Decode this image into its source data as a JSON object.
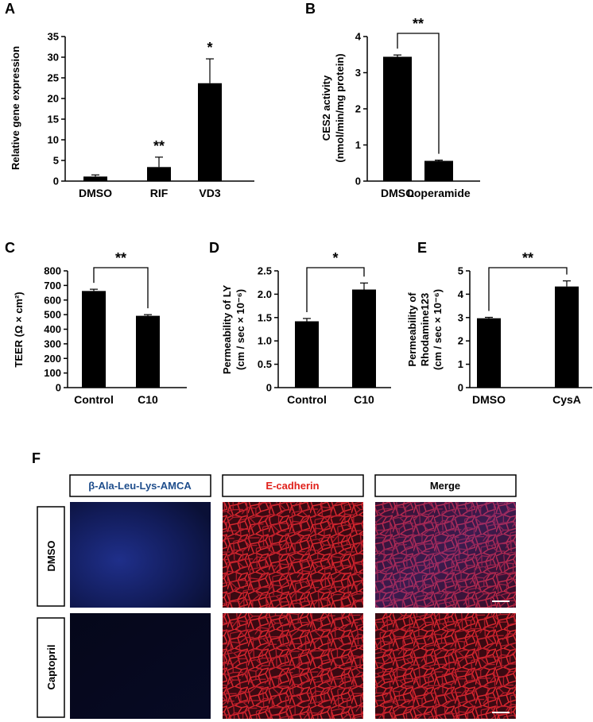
{
  "panels": [
    {
      "letter": "A"
    },
    {
      "letter": "B"
    },
    {
      "letter": "C"
    },
    {
      "letter": "D"
    },
    {
      "letter": "E"
    },
    {
      "letter": "F"
    }
  ],
  "chart_data": [
    {
      "id": "A",
      "type": "bar",
      "categories": [
        "DMSO",
        "RIF",
        "VD3"
      ],
      "values": [
        1.1,
        3.4,
        23.7
      ],
      "errors": [
        0.4,
        2.4,
        5.9
      ],
      "significance": [
        "",
        "**",
        "*"
      ],
      "ylabel": "Relative  gene expression",
      "ylim": [
        0,
        35
      ],
      "yticks": [
        "0",
        "5",
        "10",
        "15",
        "20",
        "25",
        "30",
        "35"
      ],
      "bar_color": "#000000"
    },
    {
      "id": "B",
      "type": "bar",
      "categories": [
        "DMSO",
        "Loperamide"
      ],
      "values": [
        3.44,
        0.56
      ],
      "errors": [
        0.05,
        0.02
      ],
      "bracket_significance": "**",
      "ylabel_lines": [
        "CES2 activity",
        "(nmol/min/mg protein)"
      ],
      "ylim": [
        0,
        4
      ],
      "yticks": [
        "0",
        "1",
        "2",
        "3",
        "4"
      ],
      "bar_color": "#000000"
    },
    {
      "id": "C",
      "type": "bar",
      "categories": [
        "Control",
        "C10"
      ],
      "values": [
        662,
        492
      ],
      "errors": [
        12,
        8
      ],
      "bracket_significance": "**",
      "ylabel": "TEER (Ω × cm²)",
      "ylim": [
        0,
        800
      ],
      "yticks": [
        "0",
        "100",
        "200",
        "300",
        "400",
        "500",
        "600",
        "700",
        "800"
      ],
      "bar_color": "#000000"
    },
    {
      "id": "D",
      "type": "bar",
      "categories": [
        "Control",
        "C10"
      ],
      "values": [
        1.42,
        2.1
      ],
      "errors": [
        0.06,
        0.14
      ],
      "bracket_significance": "*",
      "ylabel_lines": [
        "Permeability of LY",
        "(cm / sec × 10⁻⁶)"
      ],
      "ylim": [
        0,
        2.5
      ],
      "yticks": [
        "0",
        "0.5",
        "1.0",
        "1.5",
        "2.0",
        "2.5"
      ],
      "bar_color": "#000000"
    },
    {
      "id": "E",
      "type": "bar",
      "categories": [
        "DMSO",
        "CysA"
      ],
      "values": [
        2.97,
        4.33
      ],
      "errors": [
        0.04,
        0.24
      ],
      "bracket_significance": "**",
      "ylabel_lines": [
        "Permeability of",
        "Rhodamine123",
        "(cm / sec × 10⁻⁶)"
      ],
      "ylim": [
        0,
        5
      ],
      "yticks": [
        "0",
        "1",
        "2",
        "3",
        "4",
        "5"
      ],
      "bar_color": "#000000"
    }
  ],
  "microscopy": {
    "columns": [
      {
        "label": "β-Ala-Leu-Lys-AMCA",
        "color": "#1f4e8c"
      },
      {
        "label": "E-cadherin",
        "color": "#e0201b"
      },
      {
        "label": "Merge",
        "color": "#000000"
      }
    ],
    "rows": [
      {
        "label": "DMSO"
      },
      {
        "label": "Captopril"
      }
    ]
  }
}
